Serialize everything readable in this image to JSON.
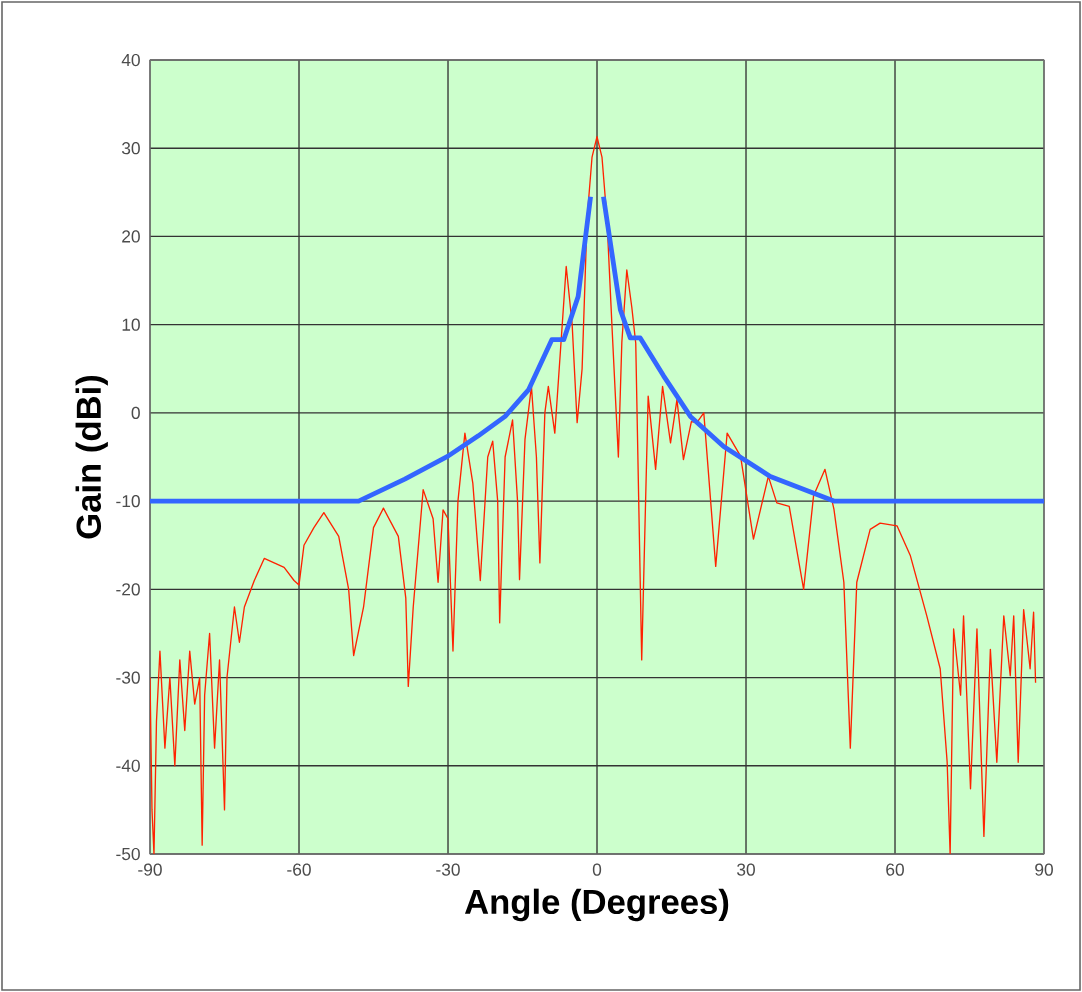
{
  "chart_data": {
    "type": "line",
    "xlabel": "Angle (Degrees)",
    "ylabel": "Gain (dBi)",
    "xlim": [
      -90,
      90
    ],
    "xticks": [
      -90,
      -60,
      -30,
      0,
      30,
      60,
      90
    ],
    "ylim": [
      -50,
      40
    ],
    "yticks": [
      -50,
      -40,
      -30,
      -20,
      -10,
      0,
      10,
      20,
      30,
      40
    ],
    "grid": true,
    "marker": "none",
    "line_style": "solid",
    "series": [
      {
        "color": "#ff2200",
        "x": [
          -90,
          -89.6,
          -89.2,
          -88.7,
          -88,
          -87,
          -86,
          -85,
          -84,
          -83,
          -82,
          -81,
          -80,
          -79.5,
          -79,
          -78,
          -77,
          -76,
          -75,
          -74.5,
          -73,
          -72,
          -71,
          -69,
          -67,
          -65,
          -63,
          -61,
          -60,
          -59,
          -57,
          -55,
          -52,
          -50,
          -49,
          -47,
          -45,
          -43,
          -40,
          -38.5,
          -38,
          -37,
          -35,
          -33,
          -32,
          -31,
          -30,
          -29,
          -28,
          -26.6,
          -25,
          -23.5,
          -22,
          -21,
          -20,
          -19.6,
          -18.5,
          -17,
          -16,
          -15.6,
          -14.5,
          -13.2,
          -12.2,
          -11.5,
          -10.5,
          -9.8,
          -8.5,
          -6.2,
          -5,
          -4,
          -3,
          -2,
          -1,
          0,
          1,
          2,
          3,
          4.3,
          5,
          6,
          7,
          7.8,
          9,
          10.3,
          11.8,
          13.2,
          14.8,
          16.1,
          17.4,
          19,
          20.1,
          21.5,
          23.9,
          26.2,
          28.9,
          31.5,
          34.5,
          36.2,
          38.7,
          41.6,
          43.6,
          45.9,
          47.7,
          49.7,
          51,
          52.3,
          55,
          57,
          60.4,
          63.1,
          66.4,
          69.1,
          70.5,
          71.1,
          71.8,
          73.2,
          73.8,
          75.2,
          76.5,
          77.9,
          79.2,
          80.5,
          81.9,
          83.2,
          83.9,
          84.8,
          85.9,
          87.2,
          87.9,
          88.3
        ],
        "values": [
          -30,
          -45,
          -50,
          -35,
          -27,
          -38,
          -30,
          -40,
          -28,
          -36,
          -27,
          -33,
          -30,
          -49,
          -32,
          -25,
          -38,
          -28,
          -45,
          -30,
          -22,
          -26,
          -22,
          -19,
          -16.5,
          -17,
          -17.5,
          -19,
          -19.5,
          -15,
          -13,
          -11.3,
          -14,
          -20,
          -27.5,
          -22,
          -13,
          -10.8,
          -14,
          -21,
          -31,
          -22,
          -8.7,
          -12,
          -19.2,
          -11,
          -12,
          -27,
          -10,
          -2.3,
          -8,
          -19,
          -5,
          -3.2,
          -10,
          -23.8,
          -5,
          -0.8,
          -10,
          -18.9,
          -3,
          3,
          -5,
          -17,
          0,
          3,
          -2.3,
          16.6,
          10,
          -1.1,
          5,
          22,
          29,
          31.3,
          29,
          22,
          10,
          -5,
          8,
          16.2,
          12,
          7.9,
          -28,
          1.9,
          -6.4,
          3,
          -3.4,
          1.5,
          -5.3,
          -1,
          -1.1,
          0,
          -17.4,
          -2.3,
          -4.9,
          -14.3,
          -7.2,
          -10.2,
          -10.6,
          -20,
          -9.4,
          -6.4,
          -10.9,
          -19.2,
          -38,
          -19.2,
          -13.2,
          -12.5,
          -12.8,
          -16.2,
          -23,
          -29,
          -39.6,
          -50,
          -24.5,
          -32,
          -23,
          -42.6,
          -24.5,
          -48,
          -26.8,
          -39.6,
          -23,
          -29.8,
          -23,
          -39.6,
          -22.3,
          -29,
          -22.6,
          -30.6
        ]
      },
      {
        "color": "#3366ff",
        "x": [
          -90,
          -48,
          -38.7,
          -30,
          -23.9,
          -18.5,
          -13.8,
          -9.1,
          -6.7,
          -3.8,
          -1.3,
          0,
          1.3,
          4.7,
          6.7,
          8.7,
          13.4,
          18.8,
          25.5,
          34.9,
          47.7,
          90
        ],
        "values": [
          -10,
          -10,
          -7.5,
          -4.9,
          -2.6,
          -0.4,
          2.6,
          8.3,
          8.3,
          13.2,
          24.5,
          null,
          24.5,
          11.7,
          8.5,
          8.5,
          4.2,
          -0.4,
          -3.8,
          -7.2,
          -10,
          -10
        ]
      }
    ]
  }
}
